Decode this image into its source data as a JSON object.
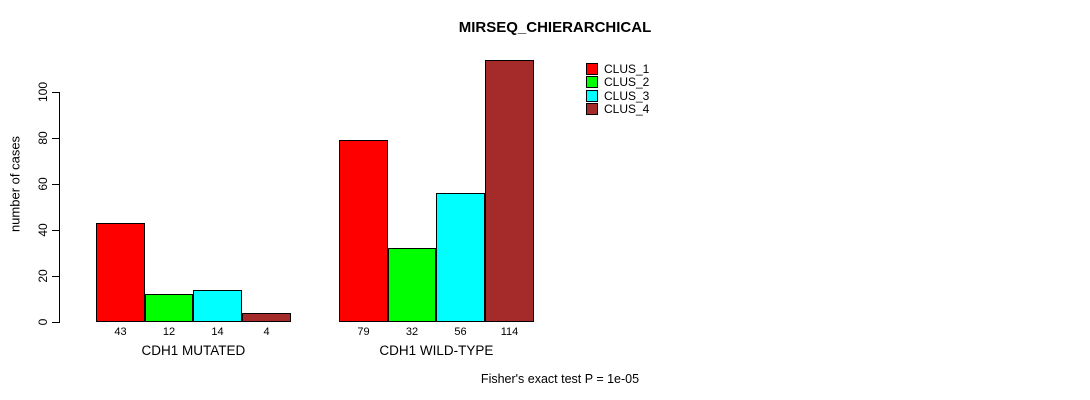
{
  "chart_data": {
    "type": "bar",
    "title": "MIRSEQ_CHIERARCHICAL",
    "ylabel": "number of cases",
    "xlabel": "",
    "categories": [
      "CDH1 MUTATED",
      "CDH1 WILD-TYPE"
    ],
    "series": [
      {
        "name": "CLUS_1",
        "color": "#FF0000",
        "values": [
          43,
          79
        ]
      },
      {
        "name": "CLUS_2",
        "color": "#00FF00",
        "values": [
          12,
          32
        ]
      },
      {
        "name": "CLUS_3",
        "color": "#00FFFF",
        "values": [
          14,
          56
        ]
      },
      {
        "name": "CLUS_4",
        "color": "#A52A2A",
        "values": [
          4,
          114
        ]
      }
    ],
    "yticks": [
      0,
      20,
      40,
      60,
      80,
      100
    ],
    "ylim": [
      0,
      114
    ],
    "grid": false,
    "bar_borders": "#000000",
    "legend": {
      "position": "top-right",
      "entries": [
        "CLUS_1",
        "CLUS_2",
        "CLUS_3",
        "CLUS_4"
      ]
    },
    "annotation": "Fisher's exact test P = 1e-05"
  }
}
